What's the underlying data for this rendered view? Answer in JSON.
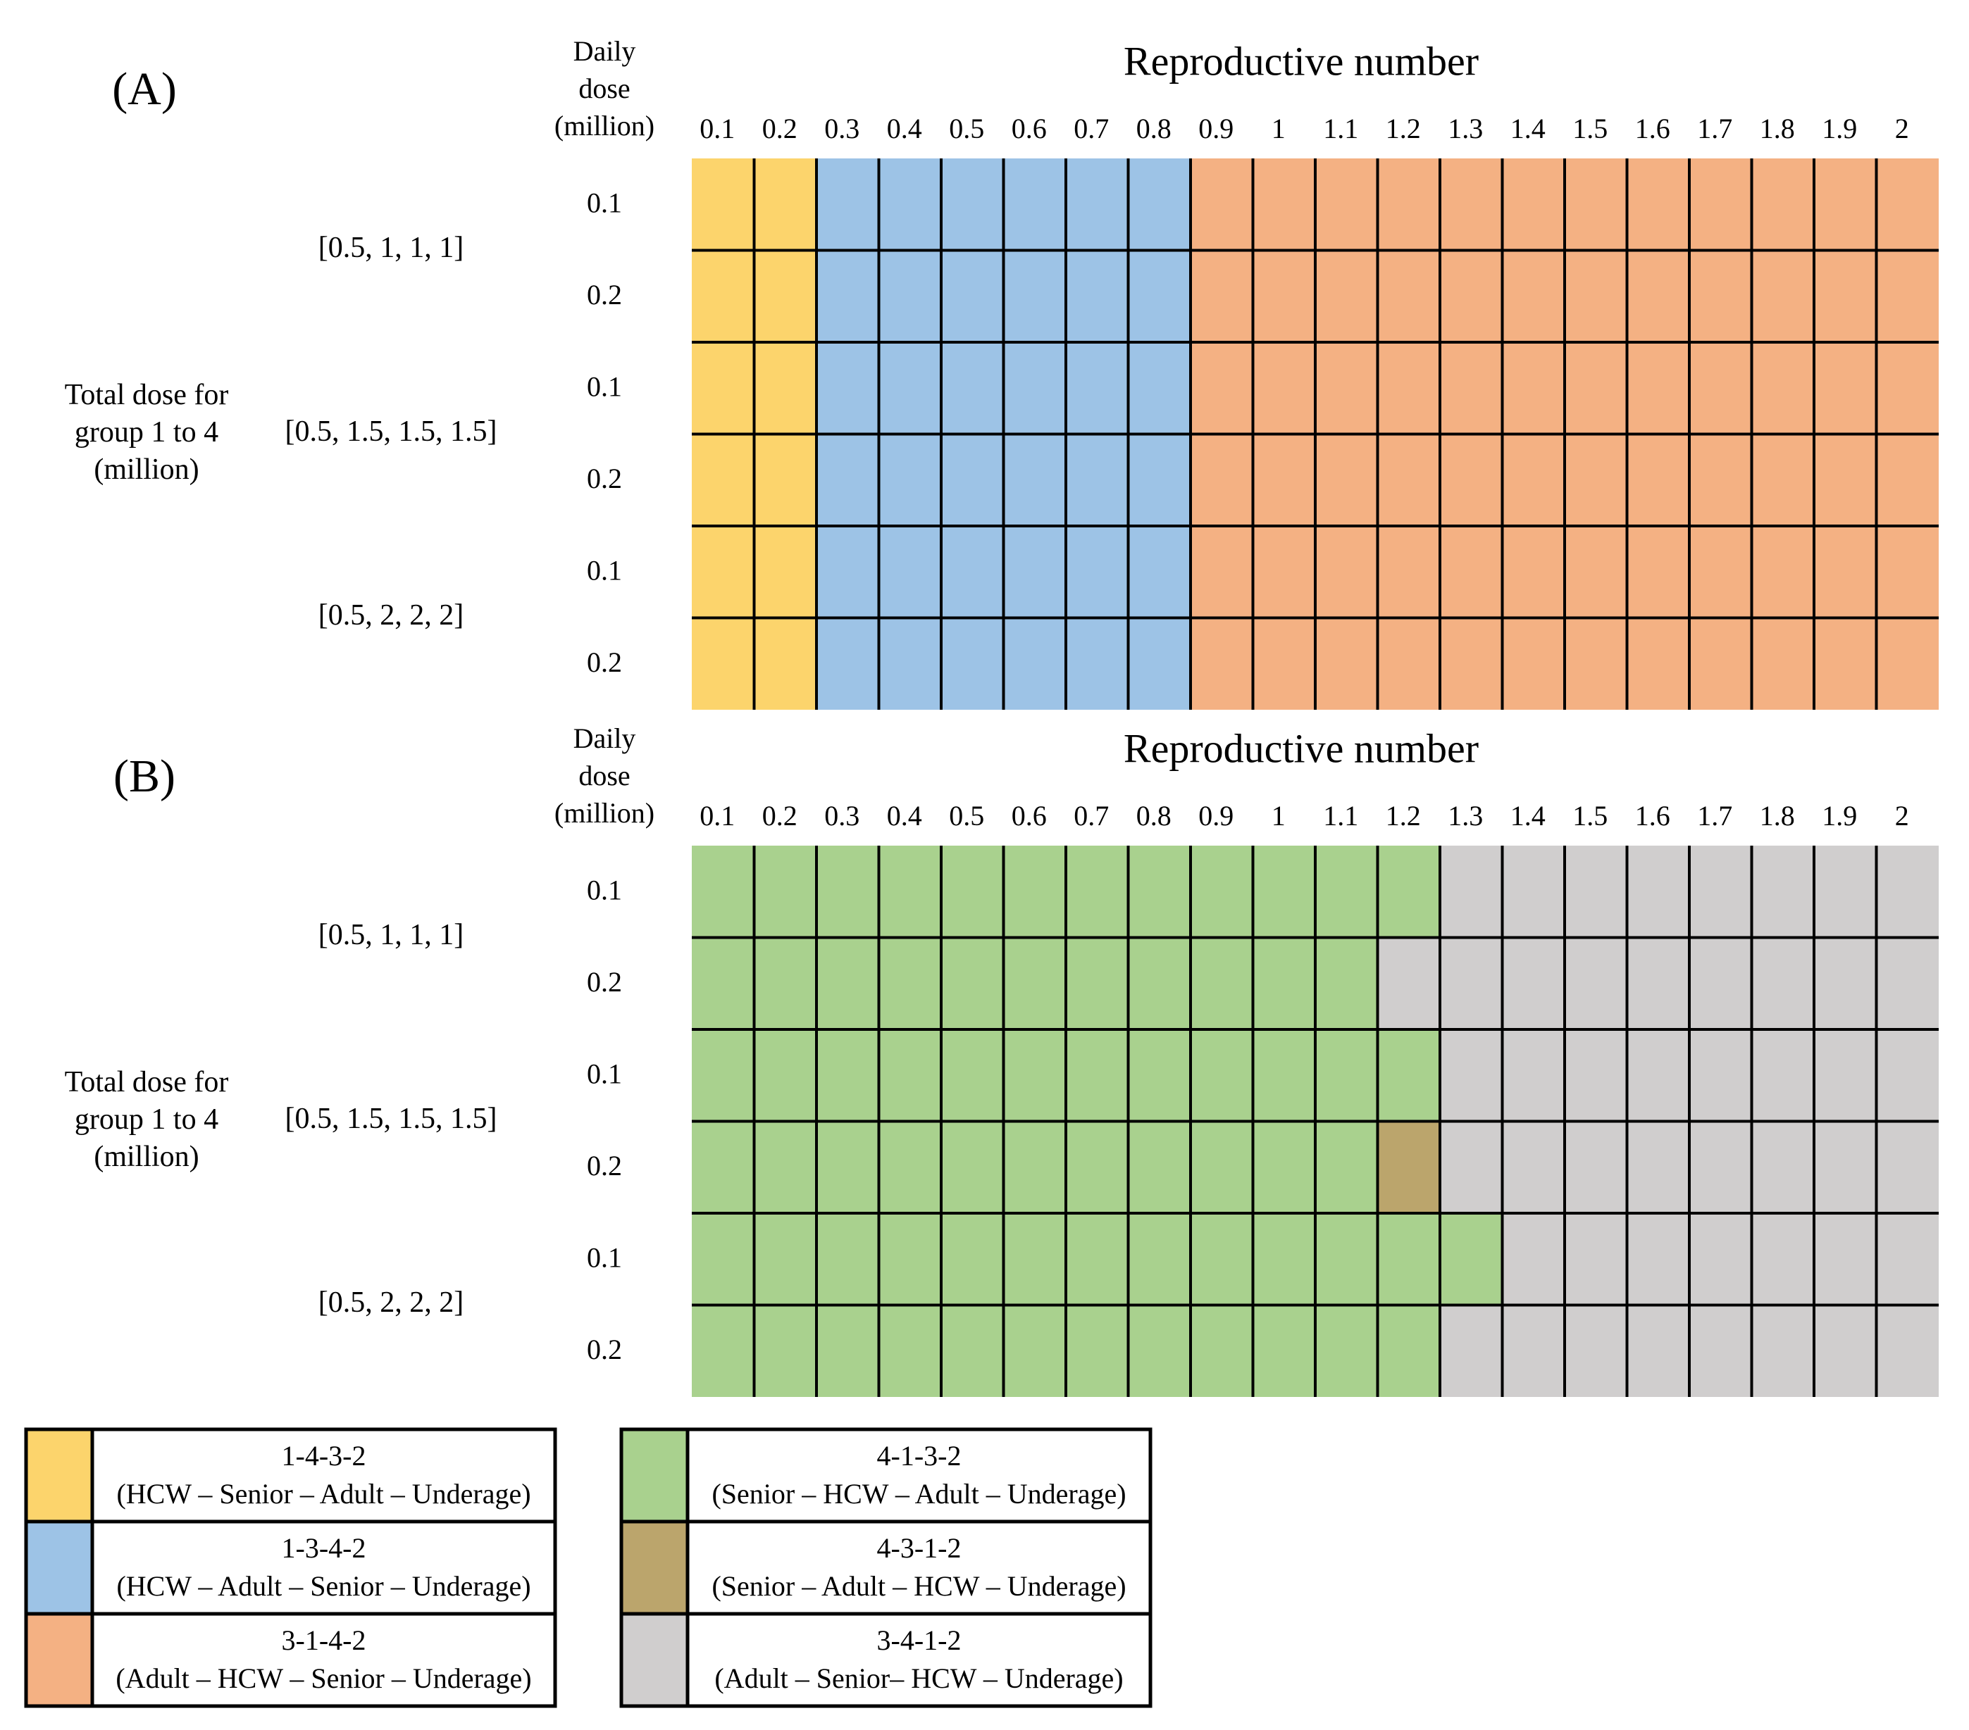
{
  "colors": {
    "c1432": "#FCD46C",
    "c1342": "#9DC3E6",
    "c3142": "#F4B183",
    "c4132": "#A9D18E",
    "c4312": "#BBA56C",
    "c3412": "#D0CECE",
    "grid": "#000000"
  },
  "chart_data": {
    "type": "heatmap",
    "x": [
      "0.1",
      "0.2",
      "0.3",
      "0.4",
      "0.5",
      "0.6",
      "0.7",
      "0.8",
      "0.9",
      "1",
      "1.1",
      "1.2",
      "1.3",
      "1.4",
      "1.5",
      "1.6",
      "1.7",
      "1.8",
      "1.9",
      "2"
    ],
    "daily_dose_header": [
      "Daily",
      "dose",
      "(million)"
    ],
    "total_dose_label": [
      "Total dose for",
      "group 1 to 4",
      "(million)"
    ],
    "groups": [
      "[0.5, 1, 1, 1]",
      "[0.5, 1.5, 1.5, 1.5]",
      "[0.5, 2, 2, 2]"
    ],
    "rows": [
      "0.1",
      "0.2",
      "0.1",
      "0.2",
      "0.1",
      "0.2"
    ],
    "panels": [
      {
        "label": "(A)",
        "title": "Reproductive number",
        "cells": [
          [
            "1-4-3-2",
            "1-4-3-2",
            "1-3-4-2",
            "1-3-4-2",
            "1-3-4-2",
            "1-3-4-2",
            "1-3-4-2",
            "1-3-4-2",
            "3-1-4-2",
            "3-1-4-2",
            "3-1-4-2",
            "3-1-4-2",
            "3-1-4-2",
            "3-1-4-2",
            "3-1-4-2",
            "3-1-4-2",
            "3-1-4-2",
            "3-1-4-2",
            "3-1-4-2",
            "3-1-4-2"
          ],
          [
            "1-4-3-2",
            "1-4-3-2",
            "1-3-4-2",
            "1-3-4-2",
            "1-3-4-2",
            "1-3-4-2",
            "1-3-4-2",
            "1-3-4-2",
            "3-1-4-2",
            "3-1-4-2",
            "3-1-4-2",
            "3-1-4-2",
            "3-1-4-2",
            "3-1-4-2",
            "3-1-4-2",
            "3-1-4-2",
            "3-1-4-2",
            "3-1-4-2",
            "3-1-4-2",
            "3-1-4-2"
          ],
          [
            "1-4-3-2",
            "1-4-3-2",
            "1-3-4-2",
            "1-3-4-2",
            "1-3-4-2",
            "1-3-4-2",
            "1-3-4-2",
            "1-3-4-2",
            "3-1-4-2",
            "3-1-4-2",
            "3-1-4-2",
            "3-1-4-2",
            "3-1-4-2",
            "3-1-4-2",
            "3-1-4-2",
            "3-1-4-2",
            "3-1-4-2",
            "3-1-4-2",
            "3-1-4-2",
            "3-1-4-2"
          ],
          [
            "1-4-3-2",
            "1-4-3-2",
            "1-3-4-2",
            "1-3-4-2",
            "1-3-4-2",
            "1-3-4-2",
            "1-3-4-2",
            "1-3-4-2",
            "3-1-4-2",
            "3-1-4-2",
            "3-1-4-2",
            "3-1-4-2",
            "3-1-4-2",
            "3-1-4-2",
            "3-1-4-2",
            "3-1-4-2",
            "3-1-4-2",
            "3-1-4-2",
            "3-1-4-2",
            "3-1-4-2"
          ],
          [
            "1-4-3-2",
            "1-4-3-2",
            "1-3-4-2",
            "1-3-4-2",
            "1-3-4-2",
            "1-3-4-2",
            "1-3-4-2",
            "1-3-4-2",
            "3-1-4-2",
            "3-1-4-2",
            "3-1-4-2",
            "3-1-4-2",
            "3-1-4-2",
            "3-1-4-2",
            "3-1-4-2",
            "3-1-4-2",
            "3-1-4-2",
            "3-1-4-2",
            "3-1-4-2",
            "3-1-4-2"
          ],
          [
            "1-4-3-2",
            "1-4-3-2",
            "1-3-4-2",
            "1-3-4-2",
            "1-3-4-2",
            "1-3-4-2",
            "1-3-4-2",
            "1-3-4-2",
            "3-1-4-2",
            "3-1-4-2",
            "3-1-4-2",
            "3-1-4-2",
            "3-1-4-2",
            "3-1-4-2",
            "3-1-4-2",
            "3-1-4-2",
            "3-1-4-2",
            "3-1-4-2",
            "3-1-4-2",
            "3-1-4-2"
          ]
        ]
      },
      {
        "label": "(B)",
        "title": "Reproductive number",
        "cells": [
          [
            "4-1-3-2",
            "4-1-3-2",
            "4-1-3-2",
            "4-1-3-2",
            "4-1-3-2",
            "4-1-3-2",
            "4-1-3-2",
            "4-1-3-2",
            "4-1-3-2",
            "4-1-3-2",
            "4-1-3-2",
            "4-1-3-2",
            "3-4-1-2",
            "3-4-1-2",
            "3-4-1-2",
            "3-4-1-2",
            "3-4-1-2",
            "3-4-1-2",
            "3-4-1-2",
            "3-4-1-2"
          ],
          [
            "4-1-3-2",
            "4-1-3-2",
            "4-1-3-2",
            "4-1-3-2",
            "4-1-3-2",
            "4-1-3-2",
            "4-1-3-2",
            "4-1-3-2",
            "4-1-3-2",
            "4-1-3-2",
            "4-1-3-2",
            "3-4-1-2",
            "3-4-1-2",
            "3-4-1-2",
            "3-4-1-2",
            "3-4-1-2",
            "3-4-1-2",
            "3-4-1-2",
            "3-4-1-2",
            "3-4-1-2"
          ],
          [
            "4-1-3-2",
            "4-1-3-2",
            "4-1-3-2",
            "4-1-3-2",
            "4-1-3-2",
            "4-1-3-2",
            "4-1-3-2",
            "4-1-3-2",
            "4-1-3-2",
            "4-1-3-2",
            "4-1-3-2",
            "4-1-3-2",
            "3-4-1-2",
            "3-4-1-2",
            "3-4-1-2",
            "3-4-1-2",
            "3-4-1-2",
            "3-4-1-2",
            "3-4-1-2",
            "3-4-1-2"
          ],
          [
            "4-1-3-2",
            "4-1-3-2",
            "4-1-3-2",
            "4-1-3-2",
            "4-1-3-2",
            "4-1-3-2",
            "4-1-3-2",
            "4-1-3-2",
            "4-1-3-2",
            "4-1-3-2",
            "4-1-3-2",
            "4-3-1-2",
            "3-4-1-2",
            "3-4-1-2",
            "3-4-1-2",
            "3-4-1-2",
            "3-4-1-2",
            "3-4-1-2",
            "3-4-1-2",
            "3-4-1-2"
          ],
          [
            "4-1-3-2",
            "4-1-3-2",
            "4-1-3-2",
            "4-1-3-2",
            "4-1-3-2",
            "4-1-3-2",
            "4-1-3-2",
            "4-1-3-2",
            "4-1-3-2",
            "4-1-3-2",
            "4-1-3-2",
            "4-1-3-2",
            "4-1-3-2",
            "3-4-1-2",
            "3-4-1-2",
            "3-4-1-2",
            "3-4-1-2",
            "3-4-1-2",
            "3-4-1-2",
            "3-4-1-2"
          ],
          [
            "4-1-3-2",
            "4-1-3-2",
            "4-1-3-2",
            "4-1-3-2",
            "4-1-3-2",
            "4-1-3-2",
            "4-1-3-2",
            "4-1-3-2",
            "4-1-3-2",
            "4-1-3-2",
            "4-1-3-2",
            "4-1-3-2",
            "3-4-1-2",
            "3-4-1-2",
            "3-4-1-2",
            "3-4-1-2",
            "3-4-1-2",
            "3-4-1-2",
            "3-4-1-2",
            "3-4-1-2"
          ]
        ]
      }
    ],
    "legend": [
      {
        "code": "1-4-3-2",
        "desc": "(HCW – Senior – Adult  – Underage)",
        "color": "#FCD46C"
      },
      {
        "code": "1-3-4-2",
        "desc": "(HCW – Adult – Senior – Underage)",
        "color": "#9DC3E6"
      },
      {
        "code": "3-1-4-2",
        "desc": "(Adult – HCW – Senior – Underage)",
        "color": "#F4B183"
      },
      {
        "code": "4-1-3-2",
        "desc": "(Senior – HCW – Adult – Underage)",
        "color": "#A9D18E"
      },
      {
        "code": "4-3-1-2",
        "desc": "(Senior – Adult – HCW – Underage)",
        "color": "#BBA56C"
      },
      {
        "code": "3-4-1-2",
        "desc": "(Adult – Senior– HCW – Underage)",
        "color": "#D0CECE"
      }
    ]
  }
}
